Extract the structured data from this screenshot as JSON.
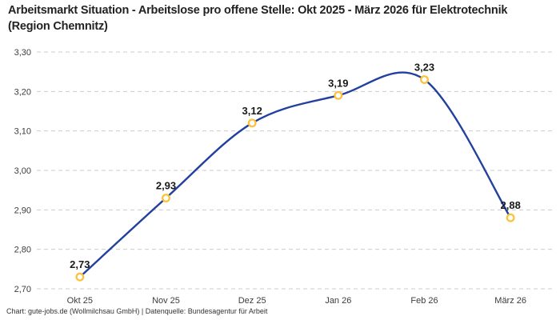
{
  "header": {
    "title": "Arbeitsmarkt Situation - Arbeitslose pro offene Stelle: Okt 2025 - März 2026 für Elektrotechnik (Region Chemnitz)"
  },
  "chart_data": {
    "type": "line",
    "title": "Arbeitsmarkt Situation - Arbeitslose pro offene Stelle: Okt 2025 - März 2026 für Elektrotechnik (Region Chemnitz)",
    "categories": [
      "Okt 25",
      "Nov 25",
      "Dez 25",
      "Jan 26",
      "Feb 26",
      "März 26"
    ],
    "values": [
      2.73,
      2.93,
      3.12,
      3.19,
      3.23,
      2.88
    ],
    "value_labels": [
      "2,73",
      "2,93",
      "3,12",
      "3,19",
      "3,23",
      "2,88"
    ],
    "xlabel": "",
    "ylabel": "",
    "ylim": [
      2.7,
      3.3
    ],
    "ytick_step": 0.1,
    "ytick_labels": [
      "2,70",
      "2,80",
      "2,90",
      "3,00",
      "3,10",
      "3,20",
      "3,30"
    ],
    "grid": "horizontal-dashed",
    "legend": "none",
    "line_style": "smooth",
    "marker_style": "open-circle"
  },
  "colors": {
    "line": "#21409f",
    "marker": "#fcc23c",
    "marker_fill": "#ffffff",
    "grid": "#cbcbcb",
    "tick_text": "#3c3c3c",
    "label_text": "#1a1a1a",
    "title_text": "#222222",
    "background": "#ffffff"
  },
  "footer": {
    "text": "Chart: gute-jobs.de (Wollmilchsau GmbH) | Datenquelle: Bundesagentur für Arbeit"
  }
}
